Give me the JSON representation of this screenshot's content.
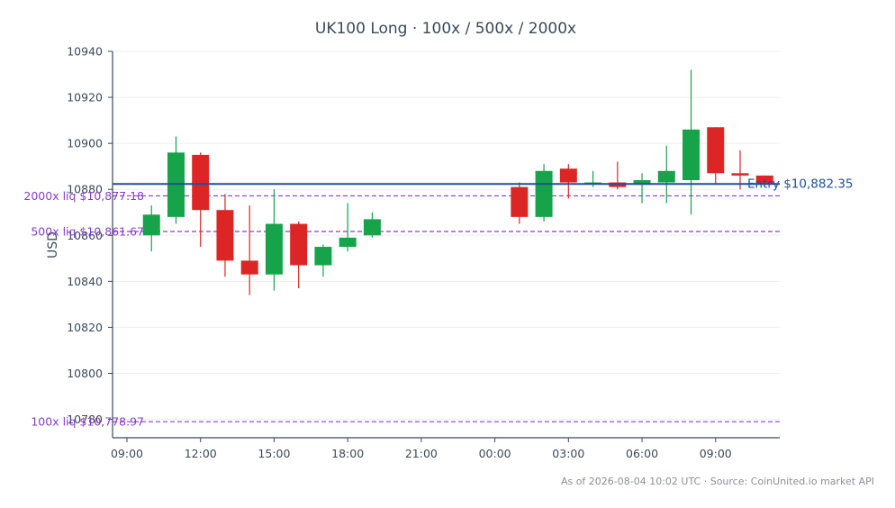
{
  "chart_data": {
    "type": "candlestick",
    "title": "UK100 Long · 100x / 500x / 2000x",
    "ylabel": "USD",
    "ylim": [
      10772,
      10940
    ],
    "yticks": [
      10780,
      10800,
      10820,
      10840,
      10860,
      10880,
      10900,
      10920,
      10940
    ],
    "xticks": [
      {
        "label": "09:00",
        "hour": 0
      },
      {
        "label": "12:00",
        "hour": 3
      },
      {
        "label": "15:00",
        "hour": 6
      },
      {
        "label": "18:00",
        "hour": 9
      },
      {
        "label": "21:00",
        "hour": 12
      },
      {
        "label": "00:00",
        "hour": 15
      },
      {
        "label": "03:00",
        "hour": 18
      },
      {
        "label": "06:00",
        "hour": 21
      },
      {
        "label": "09:00",
        "hour": 24
      }
    ],
    "grid": true,
    "colors": {
      "up": "#16a34a",
      "down": "#dc2626",
      "entry": "#1f4e9c",
      "liquidation": "#8a3dc9"
    },
    "candles": [
      {
        "hour": 1,
        "open": 10860,
        "high": 10873,
        "low": 10853,
        "close": 10869
      },
      {
        "hour": 2,
        "open": 10868,
        "high": 10903,
        "low": 10865,
        "close": 10896
      },
      {
        "hour": 3,
        "open": 10895,
        "high": 10896,
        "low": 10855,
        "close": 10871
      },
      {
        "hour": 4,
        "open": 10871,
        "high": 10878,
        "low": 10842,
        "close": 10849
      },
      {
        "hour": 5,
        "open": 10849,
        "high": 10873,
        "low": 10834,
        "close": 10843
      },
      {
        "hour": 6,
        "open": 10843,
        "high": 10880,
        "low": 10836,
        "close": 10865
      },
      {
        "hour": 7,
        "open": 10865,
        "high": 10866,
        "low": 10837,
        "close": 10847
      },
      {
        "hour": 8,
        "open": 10847,
        "high": 10856,
        "low": 10842,
        "close": 10855
      },
      {
        "hour": 9,
        "open": 10855,
        "high": 10874,
        "low": 10853,
        "close": 10859
      },
      {
        "hour": 10,
        "open": 10860,
        "high": 10870,
        "low": 10859,
        "close": 10867
      },
      {
        "hour": 16,
        "open": 10881,
        "high": 10883,
        "low": 10865,
        "close": 10868
      },
      {
        "hour": 17,
        "open": 10868,
        "high": 10891,
        "low": 10866,
        "close": 10888
      },
      {
        "hour": 18,
        "open": 10889,
        "high": 10891,
        "low": 10876,
        "close": 10883
      },
      {
        "hour": 19,
        "open": 10883,
        "high": 10888,
        "low": 10881,
        "close": 10883
      },
      {
        "hour": 20,
        "open": 10883,
        "high": 10892,
        "low": 10880,
        "close": 10881
      },
      {
        "hour": 21,
        "open": 10882,
        "high": 10887,
        "low": 10874,
        "close": 10884
      },
      {
        "hour": 22,
        "open": 10883,
        "high": 10899,
        "low": 10874,
        "close": 10888
      },
      {
        "hour": 23,
        "open": 10884,
        "high": 10932,
        "low": 10869,
        "close": 10906
      },
      {
        "hour": 24,
        "open": 10907,
        "high": 10907,
        "low": 10882,
        "close": 10887
      },
      {
        "hour": 25,
        "open": 10887,
        "high": 10897,
        "low": 10880,
        "close": 10886
      },
      {
        "hour": 26,
        "open": 10886,
        "high": 10886,
        "low": 10881,
        "close": 10882
      }
    ],
    "entry": {
      "value": 10882.35,
      "label": "Entry $10,882.35"
    },
    "liquidations": [
      {
        "value": 10877.18,
        "label": "2000x liq $10,877.18"
      },
      {
        "value": 10861.67,
        "label": "500x liq $10,861.67"
      },
      {
        "value": 10778.97,
        "label": "100x liq $10,778.97"
      }
    ],
    "footer": "As of 2026-08-04 10:02 UTC · Source: CoinUnited.io market API"
  }
}
